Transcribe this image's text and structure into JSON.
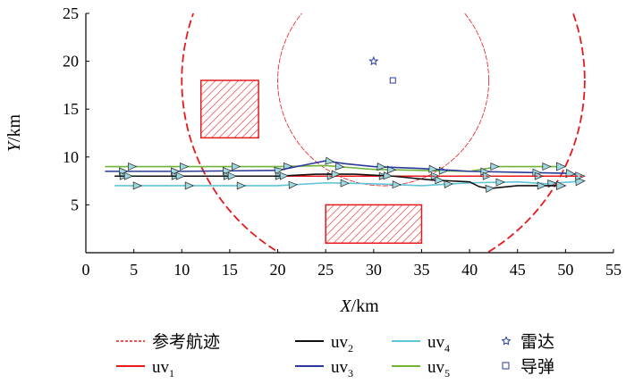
{
  "chart_data": {
    "type": "line",
    "xlabel_var": "X",
    "xlabel_unit": "/km",
    "ylabel_var": "Y",
    "ylabel_unit": "/km",
    "xlim": [
      0,
      55
    ],
    "ylim": [
      0,
      25
    ],
    "xticks": [
      0,
      5,
      10,
      15,
      20,
      25,
      30,
      35,
      40,
      45,
      50,
      55
    ],
    "yticks": [
      5,
      10,
      15,
      20,
      25
    ],
    "grid": false,
    "legend_placement": "bottom",
    "series": [
      {
        "name": "参考航迹",
        "color": "#e8191c",
        "dashed": true,
        "points": [
          [
            3,
            8
          ],
          [
            10,
            8
          ],
          [
            20,
            8
          ],
          [
            30,
            8
          ],
          [
            40,
            8
          ],
          [
            52,
            8
          ]
        ]
      },
      {
        "name": "uv1",
        "label_base": "uv",
        "label_sub": "1",
        "color": "#e8191c",
        "dashed": false,
        "points": [
          [
            3,
            8
          ],
          [
            10,
            8
          ],
          [
            20,
            8
          ],
          [
            30,
            8
          ],
          [
            40,
            8
          ],
          [
            52,
            8
          ]
        ]
      },
      {
        "name": "uv2",
        "label_base": "uv",
        "label_sub": "2",
        "color": "#111111",
        "dashed": false,
        "points": [
          [
            3,
            8
          ],
          [
            10,
            8
          ],
          [
            20,
            8
          ],
          [
            24,
            8.2
          ],
          [
            28,
            8.2
          ],
          [
            32,
            8
          ],
          [
            36,
            7.6
          ],
          [
            40,
            7.4
          ],
          [
            41,
            6.9
          ],
          [
            42,
            6.7
          ],
          [
            45,
            7
          ],
          [
            50,
            7
          ]
        ]
      },
      {
        "name": "uv3",
        "label_base": "uv",
        "label_sub": "3",
        "color": "#2b3a9a",
        "dashed": false,
        "points": [
          [
            2,
            8.5
          ],
          [
            10,
            8.5
          ],
          [
            20,
            8.6
          ],
          [
            23,
            9.2
          ],
          [
            25,
            9.6
          ],
          [
            27,
            9.3
          ],
          [
            30,
            9
          ],
          [
            35,
            8.8
          ],
          [
            40,
            8.5
          ],
          [
            45,
            8.4
          ],
          [
            50,
            8.3
          ],
          [
            51,
            8.2
          ]
        ]
      },
      {
        "name": "uv4",
        "label_base": "uv",
        "label_sub": "4",
        "color": "#5ec4d6",
        "dashed": false,
        "points": [
          [
            3,
            7
          ],
          [
            10,
            7
          ],
          [
            20,
            7
          ],
          [
            25,
            7.3
          ],
          [
            30,
            7.2
          ],
          [
            35,
            7
          ],
          [
            40,
            7.3
          ],
          [
            45,
            7.4
          ],
          [
            48,
            7.2
          ],
          [
            52,
            7.5
          ]
        ]
      },
      {
        "name": "uv5",
        "label_base": "uv",
        "label_sub": "5",
        "color": "#6fb33a",
        "dashed": false,
        "points": [
          [
            2,
            9
          ],
          [
            10,
            9
          ],
          [
            20,
            9
          ],
          [
            25,
            9.1
          ],
          [
            30,
            8.7
          ],
          [
            35,
            8.6
          ],
          [
            40,
            8.5
          ],
          [
            43,
            9
          ],
          [
            50,
            9
          ]
        ]
      }
    ],
    "markers": [
      {
        "name": "雷达",
        "symbol": "star",
        "color": "#2b3a9a",
        "x": 30,
        "y": 20
      },
      {
        "name": "导弹",
        "symbol": "square",
        "color": "#2b3a9a",
        "x": 32,
        "y": 18
      }
    ],
    "obstacles": [
      {
        "x0": 12,
        "x1": 18,
        "y0": 12,
        "y1": 18,
        "color": "#e8191c"
      },
      {
        "x0": 25,
        "x1": 35,
        "y0": 1,
        "y1": 5,
        "color": "#e8191c"
      }
    ],
    "circles": [
      {
        "cx": 31,
        "cy": 18,
        "r": 21,
        "color": "#e8191c",
        "style": "long-dash"
      },
      {
        "cx": 31,
        "cy": 18,
        "r": 11,
        "color": "#e8191c",
        "style": "thin"
      }
    ]
  }
}
